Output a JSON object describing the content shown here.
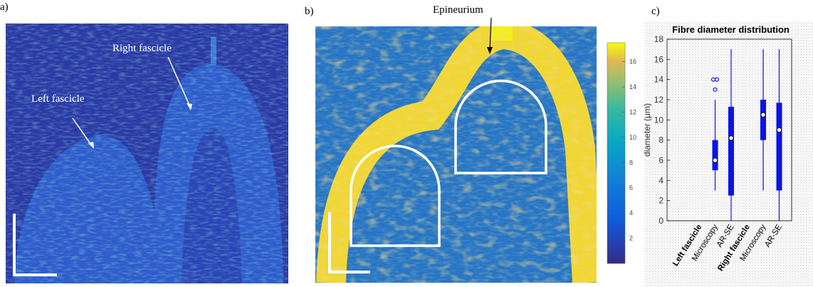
{
  "panels": {
    "a": {
      "label": "a)",
      "annotations": [
        "Right fascicle",
        "Left fascicle"
      ]
    },
    "b": {
      "label": "b)",
      "annotation": "Epineurium",
      "colorbar": {
        "ylim": [
          0,
          17.5
        ],
        "yticks": [
          2,
          4,
          6,
          8,
          10,
          12,
          14,
          16
        ]
      }
    },
    "c": {
      "label": "c)"
    }
  },
  "chart_data": {
    "type": "box",
    "title": "Fibre diameter distribution",
    "y_label": "diameter (μm)",
    "ylim": [
      0,
      18
    ],
    "yticks": [
      0,
      2,
      4,
      6,
      8,
      10,
      12,
      14,
      16,
      18
    ],
    "color": "#0a14e6",
    "groups": [
      {
        "name": "Left fascicle",
        "categories": [
          "Microscopy",
          "AR-SE"
        ],
        "boxes": [
          {
            "min": 3,
            "q1": 5,
            "median": 6,
            "q3": 8,
            "max": 12,
            "outliers": [
              14,
              14,
              13
            ]
          },
          {
            "min": 0,
            "q1": 2.5,
            "median": 8.2,
            "q3": 11.3,
            "max": 17,
            "outliers": []
          }
        ]
      },
      {
        "name": "Right fascicle",
        "categories": [
          "Microscopy",
          "AR-SE"
        ],
        "boxes": [
          {
            "min": 3,
            "q1": 8,
            "median": 10.5,
            "q3": 12,
            "max": 17,
            "outliers": []
          },
          {
            "min": 0,
            "q1": 3,
            "median": 9,
            "q3": 11.7,
            "max": 17,
            "outliers": []
          }
        ]
      }
    ]
  }
}
